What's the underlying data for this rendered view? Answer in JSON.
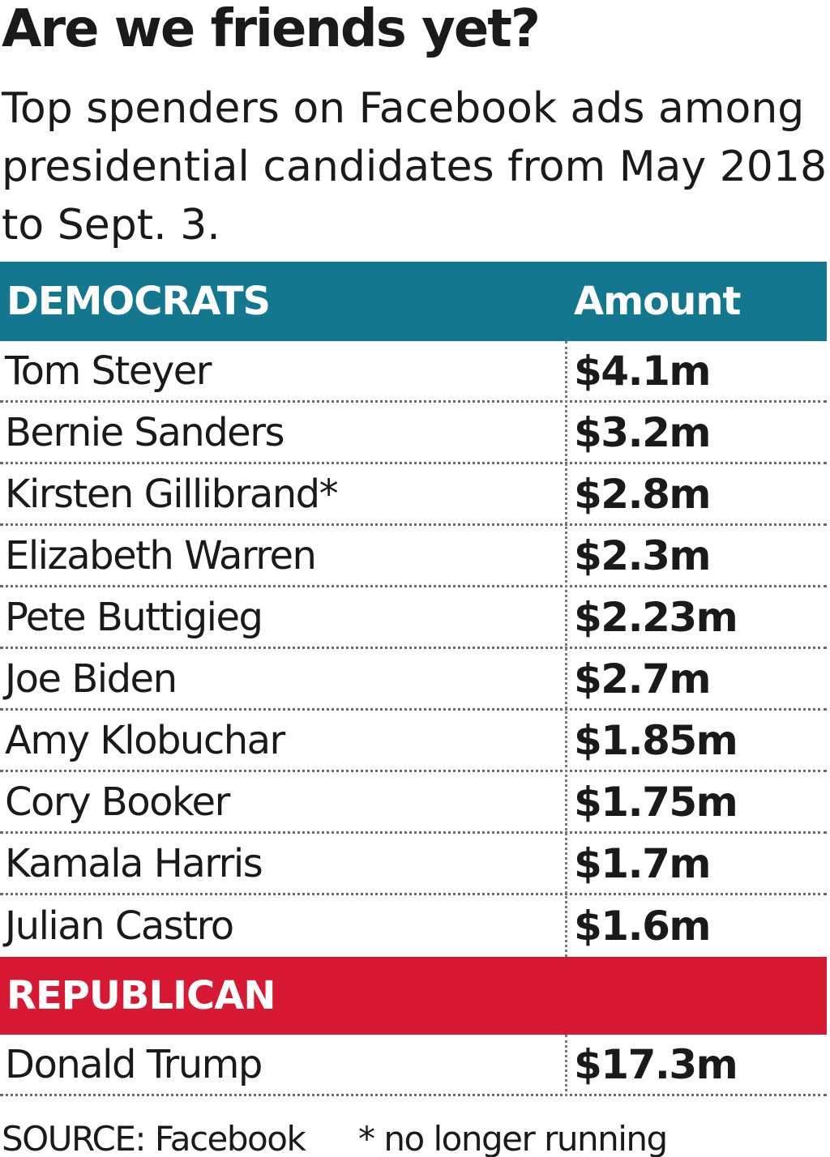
{
  "chart_data": {
    "type": "table",
    "title": "Are we friends yet?",
    "subtitle": "Top spenders on Facebook ads among presidential candidates from May 2018 to Sept. 3.",
    "columns": [
      "DEMOCRATS",
      "Amount"
    ],
    "sections": [
      {
        "label": "DEMOCRATS",
        "amount_header": "Amount",
        "color": "#13788f",
        "rows": [
          {
            "name": "Tom Steyer",
            "amount": "$4.1m"
          },
          {
            "name": "Bernie Sanders",
            "amount": "$3.2m"
          },
          {
            "name": "Kirsten Gillibrand*",
            "amount": "$2.8m"
          },
          {
            "name": "Elizabeth Warren",
            "amount": "$2.3m"
          },
          {
            "name": "Pete Buttigieg",
            "amount": "$2.23m"
          },
          {
            "name": "Joe Biden",
            "amount": "$2.7m"
          },
          {
            "name": "Amy Klobuchar",
            "amount": "$1.85m"
          },
          {
            "name": "Cory Booker",
            "amount": "$1.75m"
          },
          {
            "name": "Kamala Harris",
            "amount": "$1.7m"
          },
          {
            "name": "Julian Castro",
            "amount": "$1.6m"
          }
        ]
      },
      {
        "label": "REPUBLICAN",
        "amount_header": "",
        "color": "#d81934",
        "rows": [
          {
            "name": "Donald Trump",
            "amount": "$17.3m"
          }
        ]
      }
    ],
    "source": "SOURCE: Facebook",
    "note": "* no longer running"
  }
}
